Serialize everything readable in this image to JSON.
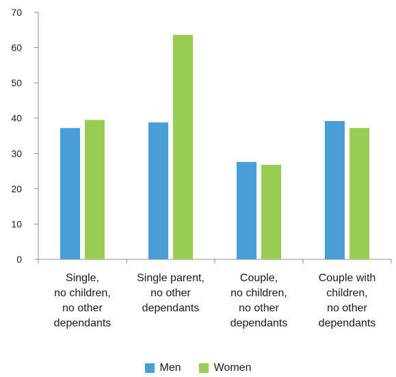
{
  "chart_data": {
    "type": "bar",
    "categories": [
      "Single,\nno children,\nno other\ndependants",
      "Single parent,\nno other\ndependants",
      "Couple,\nno children,\nno other\ndependants",
      "Couple with\nchildren,\nno other\ndependants"
    ],
    "series": [
      {
        "name": "Men",
        "color": "#4a9ed8",
        "values": [
          37.2,
          38.8,
          27.6,
          39.2
        ]
      },
      {
        "name": "Women",
        "color": "#99cc52",
        "values": [
          39.5,
          63.6,
          26.8,
          37.2
        ]
      }
    ],
    "ylim": [
      0,
      70
    ],
    "yticks": [
      "0",
      "10",
      "20",
      "30",
      "40",
      "50",
      "60",
      "70"
    ],
    "title": "",
    "xlabel": "",
    "ylabel": "",
    "grid": false,
    "legend_position": "bottom"
  }
}
